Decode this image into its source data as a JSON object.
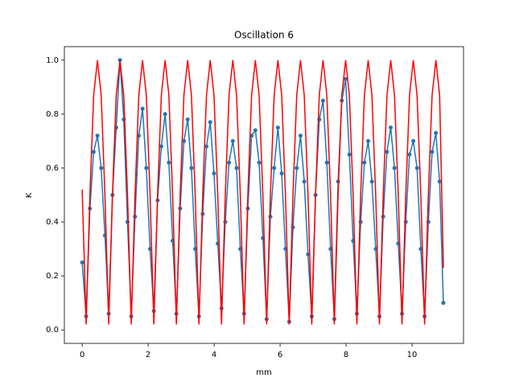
{
  "chart_data": {
    "type": "line",
    "title": "Oscillation 6",
    "xlabel": "mm",
    "ylabel": "K",
    "x": [
      0,
      0.12,
      0.234,
      0.348,
      0.462,
      0.576,
      0.69,
      0.804,
      0.918,
      1.032,
      1.146,
      1.26,
      1.374,
      1.488,
      1.602,
      1.716,
      1.83,
      1.944,
      2.058,
      2.172,
      2.286,
      2.4,
      2.514,
      2.628,
      2.742,
      2.856,
      2.97,
      3.084,
      3.198,
      3.312,
      3.426,
      3.54,
      3.654,
      3.768,
      3.882,
      3.996,
      4.11,
      4.224,
      4.338,
      4.452,
      4.566,
      4.68,
      4.794,
      4.908,
      5.022,
      5.136,
      5.25,
      5.364,
      5.478,
      5.592,
      5.706,
      5.82,
      5.934,
      6.048,
      6.162,
      6.276,
      6.39,
      6.504,
      6.618,
      6.732,
      6.846,
      6.96,
      7.074,
      7.188,
      7.302,
      7.416,
      7.53,
      7.644,
      7.758,
      7.872,
      7.986,
      8.1,
      8.214,
      8.328,
      8.442,
      8.556,
      8.67,
      8.784,
      8.898,
      9.012,
      9.126,
      9.24,
      9.354,
      9.468,
      9.582,
      9.696,
      9.81,
      9.924,
      10.038,
      10.152,
      10.266,
      10.38,
      10.494,
      10.608,
      10.722,
      10.836,
      10.95
    ],
    "series": [
      {
        "color": "#1f77b4",
        "markers": true,
        "values": [
          0.25,
          0.05,
          0.45,
          0.66,
          0.72,
          0.6,
          0.35,
          0.06,
          0.5,
          0.75,
          1.0,
          0.78,
          0.4,
          0.05,
          0.42,
          0.72,
          0.82,
          0.6,
          0.3,
          0.07,
          0.48,
          0.68,
          0.8,
          0.62,
          0.33,
          0.06,
          0.45,
          0.7,
          0.78,
          0.6,
          0.3,
          0.05,
          0.43,
          0.68,
          0.77,
          0.58,
          0.32,
          0.08,
          0.4,
          0.62,
          0.7,
          0.6,
          0.3,
          0.06,
          0.45,
          0.72,
          0.74,
          0.62,
          0.34,
          0.04,
          0.42,
          0.6,
          0.75,
          0.58,
          0.3,
          0.03,
          0.38,
          0.6,
          0.72,
          0.55,
          0.28,
          0.05,
          0.5,
          0.78,
          0.85,
          0.62,
          0.3,
          0.04,
          0.55,
          0.85,
          0.93,
          0.65,
          0.33,
          0.06,
          0.4,
          0.62,
          0.7,
          0.55,
          0.3,
          0.05,
          0.42,
          0.66,
          0.75,
          0.6,
          0.32,
          0.06,
          0.4,
          0.65,
          0.7,
          0.6,
          0.3,
          0.05,
          0.4,
          0.66,
          0.73,
          0.55,
          0.1
        ]
      },
      {
        "color": "#ff0000",
        "markers": false,
        "values": [
          0.52,
          0.02,
          0.5,
          0.87,
          1,
          0.87,
          0.5,
          0.02,
          0.5,
          0.87,
          1,
          0.87,
          0.5,
          0.02,
          0.5,
          0.87,
          1,
          0.87,
          0.5,
          0.02,
          0.5,
          0.87,
          1,
          0.87,
          0.5,
          0.02,
          0.5,
          0.87,
          1,
          0.87,
          0.5,
          0.02,
          0.5,
          0.87,
          1,
          0.87,
          0.5,
          0.02,
          0.5,
          0.87,
          1,
          0.87,
          0.5,
          0.02,
          0.5,
          0.87,
          1,
          0.87,
          0.5,
          0.02,
          0.5,
          0.87,
          1,
          0.87,
          0.5,
          0.02,
          0.5,
          0.87,
          1,
          0.87,
          0.5,
          0.02,
          0.5,
          0.87,
          1,
          0.87,
          0.5,
          0.02,
          0.5,
          0.87,
          1,
          0.87,
          0.5,
          0.02,
          0.5,
          0.87,
          1,
          0.87,
          0.5,
          0.02,
          0.5,
          0.87,
          1,
          0.87,
          0.5,
          0.02,
          0.5,
          0.87,
          1,
          0.87,
          0.5,
          0.02,
          0.5,
          0.87,
          1,
          0.87,
          0.23
        ]
      }
    ],
    "xlim": [
      -0.54,
      11.56
    ],
    "xticks": [
      0,
      2,
      4,
      6,
      8,
      10
    ],
    "ylim": [
      -0.05,
      1.05
    ],
    "yticks": [
      {
        "value": 0,
        "label": "0.0"
      },
      0.2,
      0.4,
      0.6,
      0.8,
      {
        "value": 1,
        "label": "1.0"
      }
    ]
  }
}
